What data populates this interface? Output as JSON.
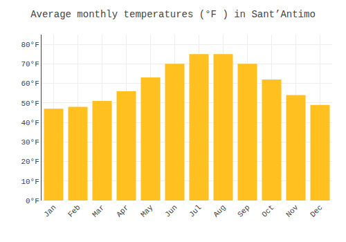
{
  "chart_data": {
    "type": "bar",
    "title": "Average monthly temperatures (°F ) in Sant’Antimo",
    "categories": [
      "Jan",
      "Feb",
      "Mar",
      "Apr",
      "May",
      "Jun",
      "Jul",
      "Aug",
      "Sep",
      "Oct",
      "Nov",
      "Dec"
    ],
    "values": [
      47,
      48,
      51,
      56,
      63,
      70,
      75,
      75,
      70,
      62,
      54,
      49
    ],
    "color": "#FFC020",
    "ylim": [
      0,
      85
    ],
    "yticks": [
      {
        "value": 0,
        "label": "0°F"
      },
      {
        "value": 10,
        "label": "10°F"
      },
      {
        "value": 20,
        "label": "20°F"
      },
      {
        "value": 30,
        "label": "30°F"
      },
      {
        "value": 40,
        "label": "40°F"
      },
      {
        "value": 50,
        "label": "50°F"
      },
      {
        "value": 60,
        "label": "60°F"
      },
      {
        "value": 70,
        "label": "70°F"
      },
      {
        "value": 80,
        "label": "80°F"
      }
    ],
    "grid": true
  }
}
